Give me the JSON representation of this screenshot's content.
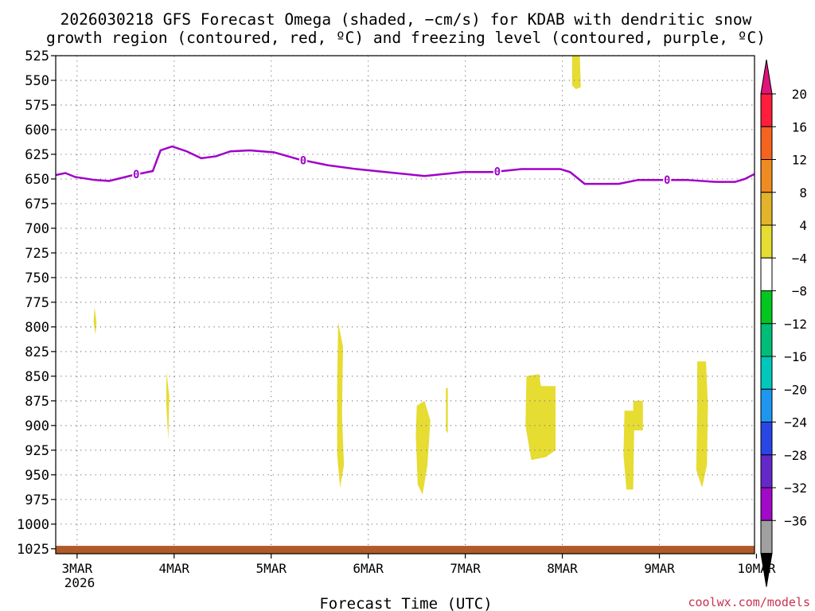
{
  "chart_data": {
    "type": "heatmap",
    "title_line1": "2026030218 GFS Forecast Omega (shaded, −cm/s) for KDAB with dendritic snow",
    "title_line2": "growth region (contoured, red, ºC) and freezing level (contoured, purple, ºC)",
    "xlabel": "Forecast Time (UTC)",
    "credit": "coolwx.com/models",
    "x_range_days": [
      0,
      7.2
    ],
    "y_range_hPa": [
      525,
      1030
    ],
    "x_ticks": [
      {
        "label": "3MAR",
        "day": 0.22
      },
      {
        "label": "4MAR",
        "day": 1.22
      },
      {
        "label": "5MAR",
        "day": 2.22
      },
      {
        "label": "6MAR",
        "day": 3.22
      },
      {
        "label": "7MAR",
        "day": 4.22
      },
      {
        "label": "8MAR",
        "day": 5.22
      },
      {
        "label": "9MAR",
        "day": 6.22
      },
      {
        "label": "10MAR",
        "day": 7.22
      }
    ],
    "x_sublabel": "2026",
    "y_ticks": [
      "525",
      "550",
      "575",
      "600",
      "625",
      "650",
      "675",
      "700",
      "725",
      "750",
      "775",
      "800",
      "825",
      "850",
      "875",
      "900",
      "925",
      "950",
      "975",
      "1000",
      "1025"
    ],
    "colorbar": {
      "labels": [
        "20",
        "16",
        "12",
        "8",
        "4",
        "−4",
        "−8",
        "−12",
        "−16",
        "−20",
        "−24",
        "−28",
        "−32",
        "−36"
      ],
      "colors": [
        "#ff1e3c",
        "#f5641e",
        "#ee8c21",
        "#e1b42a",
        "#e6dc32",
        "#ffffff",
        "#00c81e",
        "#00be77",
        "#00c8bd",
        "#1e96f0",
        "#2846e6",
        "#6428c8",
        "#a00ac8",
        "#a0a0a0"
      ],
      "top_arrow_color": "#e0147a",
      "bottom_arrow_color": "#000000"
    },
    "freezing_level": {
      "label": "0",
      "color": "#a000c8",
      "points": [
        [
          0,
          646
        ],
        [
          0.1,
          644
        ],
        [
          0.2,
          648
        ],
        [
          0.4,
          651
        ],
        [
          0.55,
          652
        ],
        [
          0.8,
          646
        ],
        [
          1.0,
          642
        ],
        [
          1.08,
          621
        ],
        [
          1.2,
          617
        ],
        [
          1.35,
          622
        ],
        [
          1.5,
          629
        ],
        [
          1.65,
          627
        ],
        [
          1.8,
          622
        ],
        [
          2.0,
          621
        ],
        [
          2.25,
          623
        ],
        [
          2.5,
          630
        ],
        [
          2.8,
          636
        ],
        [
          3.1,
          640
        ],
        [
          3.4,
          643
        ],
        [
          3.8,
          647
        ],
        [
          4.2,
          643
        ],
        [
          4.5,
          643
        ],
        [
          4.8,
          640
        ],
        [
          5.2,
          640
        ],
        [
          5.3,
          643
        ],
        [
          5.45,
          655
        ],
        [
          5.8,
          655
        ],
        [
          6.0,
          651
        ],
        [
          6.25,
          651
        ],
        [
          6.5,
          651
        ],
        [
          6.8,
          653
        ],
        [
          7.0,
          653
        ],
        [
          7.1,
          650
        ],
        [
          7.2,
          645
        ]
      ],
      "label_days": [
        0.83,
        2.55,
        4.55,
        6.3
      ]
    },
    "omega_blobs": [
      {
        "value": 4,
        "color": "#e6dc32",
        "points": [
          [
            5.32,
            525
          ],
          [
            5.4,
            525
          ],
          [
            5.41,
            557
          ],
          [
            5.36,
            559
          ],
          [
            5.32,
            555
          ]
        ]
      },
      {
        "value": 4,
        "color": "#e6dc32",
        "points": [
          [
            0.4,
            780
          ],
          [
            0.42,
            795
          ],
          [
            0.41,
            808
          ],
          [
            0.39,
            795
          ]
        ]
      },
      {
        "value": 4,
        "color": "#e6dc32",
        "points": [
          [
            1.14,
            845
          ],
          [
            1.17,
            870
          ],
          [
            1.16,
            915
          ],
          [
            1.14,
            880
          ]
        ]
      },
      {
        "value": 4,
        "color": "#e6dc32",
        "points": [
          [
            2.91,
            795
          ],
          [
            2.96,
            820
          ],
          [
            2.95,
            890
          ],
          [
            2.97,
            940
          ],
          [
            2.93,
            963
          ],
          [
            2.9,
            930
          ],
          [
            2.9,
            860
          ]
        ]
      },
      {
        "value": 4,
        "color": "#e6dc32",
        "points": [
          [
            3.72,
            880
          ],
          [
            3.8,
            875
          ],
          [
            3.86,
            895
          ],
          [
            3.83,
            940
          ],
          [
            3.78,
            970
          ],
          [
            3.73,
            960
          ],
          [
            3.71,
            910
          ]
        ]
      },
      {
        "value": 4,
        "color": "#e6dc32",
        "points": [
          [
            4.02,
            862
          ],
          [
            4.04,
            862
          ],
          [
            4.04,
            908
          ],
          [
            4.02,
            905
          ]
        ]
      },
      {
        "value": 4,
        "color": "#e6dc32",
        "points": [
          [
            4.85,
            850
          ],
          [
            4.98,
            848
          ],
          [
            5.0,
            860
          ],
          [
            5.15,
            860
          ],
          [
            5.15,
            925
          ],
          [
            5.05,
            932
          ],
          [
            4.9,
            935
          ],
          [
            4.84,
            900
          ]
        ]
      },
      {
        "value": 4,
        "color": "#e6dc32",
        "points": [
          [
            5.86,
            885
          ],
          [
            5.95,
            885
          ],
          [
            5.95,
            875
          ],
          [
            6.05,
            875
          ],
          [
            6.05,
            905
          ],
          [
            5.96,
            905
          ],
          [
            5.95,
            965
          ],
          [
            5.88,
            965
          ],
          [
            5.85,
            930
          ]
        ]
      },
      {
        "value": 4,
        "color": "#e6dc32",
        "points": [
          [
            6.61,
            835
          ],
          [
            6.7,
            835
          ],
          [
            6.72,
            880
          ],
          [
            6.71,
            940
          ],
          [
            6.66,
            963
          ],
          [
            6.6,
            945
          ],
          [
            6.61,
            880
          ]
        ]
      }
    ],
    "surface": {
      "color": "#b05a2a",
      "top_hPa": 1022
    }
  }
}
